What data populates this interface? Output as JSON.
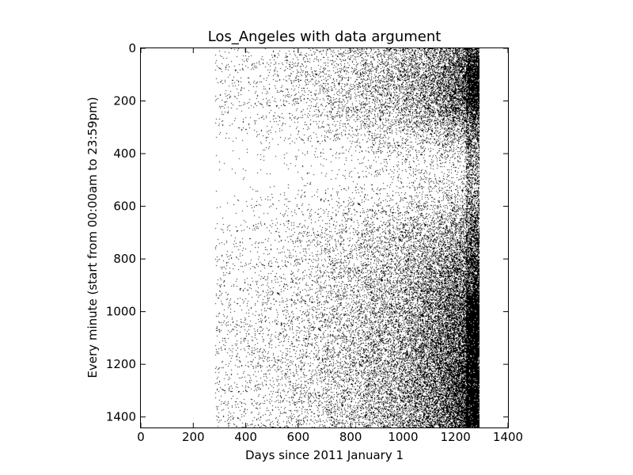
{
  "chart_data": {
    "type": "heatmap",
    "title": "Los_Angeles with data argument",
    "xlabel": "Days since 2011 January 1",
    "ylabel": "Every minute (start from 00:00am to 23:59pm)",
    "xlim": [
      0,
      1400
    ],
    "ylim": [
      1440,
      0
    ],
    "x_ticks": [
      0,
      200,
      400,
      600,
      800,
      1000,
      1200,
      1400
    ],
    "y_ticks": [
      0,
      200,
      400,
      600,
      800,
      1000,
      1200,
      1400
    ],
    "x_tick_labels": [
      "0",
      "200",
      "400",
      "600",
      "800",
      "1000",
      "1200",
      "1400"
    ],
    "y_tick_labels": [
      "0",
      "200",
      "400",
      "600",
      "800",
      "1000",
      "1200",
      "1400"
    ],
    "data_extent": {
      "days": [
        0,
        1290
      ],
      "minutes": [
        0,
        1440
      ]
    },
    "cmap": "binary",
    "grid": false,
    "colors": {
      "ink": "#000000",
      "background": "#ffffff"
    }
  }
}
